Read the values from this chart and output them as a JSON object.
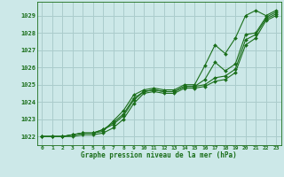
{
  "bg_color": "#cce8e8",
  "grid_color": "#aacccc",
  "line_color": "#1a6e1a",
  "marker_color": "#1a6e1a",
  "title": "Graphe pression niveau de la mer (hPa)",
  "xlim": [
    -0.5,
    23.5
  ],
  "ylim": [
    1021.5,
    1029.8
  ],
  "xticks": [
    0,
    1,
    2,
    3,
    4,
    5,
    6,
    7,
    8,
    9,
    10,
    11,
    12,
    13,
    14,
    15,
    16,
    17,
    18,
    19,
    20,
    21,
    22,
    23
  ],
  "yticks": [
    1022,
    1023,
    1024,
    1025,
    1026,
    1027,
    1028,
    1029
  ],
  "series": [
    [
      1022.0,
      1022.0,
      1022.0,
      1022.1,
      1022.2,
      1022.2,
      1022.3,
      1022.9,
      1023.5,
      1024.4,
      1024.7,
      1024.8,
      1024.7,
      1024.7,
      1025.0,
      1025.0,
      1026.1,
      1027.3,
      1026.8,
      1027.7,
      1029.0,
      1029.3,
      1029.0,
      1029.3
    ],
    [
      1022.0,
      1022.0,
      1022.0,
      1022.1,
      1022.2,
      1022.2,
      1022.4,
      1022.8,
      1023.3,
      1024.2,
      1024.6,
      1024.7,
      1024.6,
      1024.6,
      1024.9,
      1024.9,
      1025.3,
      1026.3,
      1025.8,
      1026.2,
      1027.9,
      1028.0,
      1028.9,
      1029.2
    ],
    [
      1022.0,
      1022.0,
      1022.0,
      1022.1,
      1022.2,
      1022.2,
      1022.4,
      1022.7,
      1023.2,
      1024.1,
      1024.6,
      1024.7,
      1024.6,
      1024.6,
      1024.9,
      1024.9,
      1025.0,
      1025.4,
      1025.5,
      1025.9,
      1027.6,
      1027.9,
      1028.8,
      1029.1
    ],
    [
      1022.0,
      1022.0,
      1022.0,
      1022.0,
      1022.1,
      1022.1,
      1022.2,
      1022.5,
      1023.0,
      1023.9,
      1024.5,
      1024.6,
      1024.5,
      1024.5,
      1024.8,
      1024.8,
      1024.9,
      1025.2,
      1025.3,
      1025.7,
      1027.3,
      1027.7,
      1028.7,
      1029.0
    ]
  ]
}
